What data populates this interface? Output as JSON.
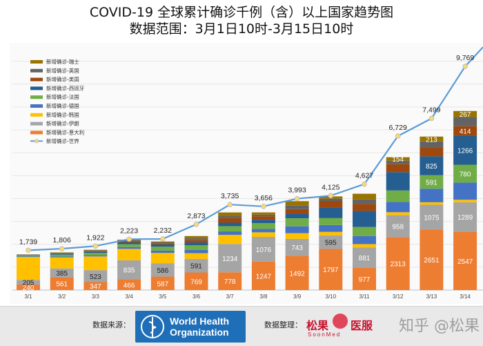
{
  "title": {
    "line1": "COVID-19 全球累计确诊千例（含）以上国家趋势图",
    "line2": "数据范围：3月1日10时-3月15日10时"
  },
  "footer": {
    "source_label": "数据来源：",
    "org_line1": "World Health",
    "org_line2": "Organization",
    "compiler_label": "数据整理：",
    "compiler_name_a": "松果",
    "compiler_name_b": "医服",
    "compiler_sub": "SoonMed",
    "watermark": "知乎 @松果"
  },
  "chart_data": {
    "type": "bar",
    "stacked": true,
    "categories": [
      "3/1",
      "3/2",
      "3/3",
      "3/4",
      "3/5",
      "3/6",
      "3/7",
      "3/8",
      "3/9",
      "3/10",
      "3/11",
      "3/12",
      "3/13",
      "3/14"
    ],
    "ylim": [
      0,
      10500
    ],
    "grid": true,
    "legend_position": "top-left",
    "series": [
      {
        "name": "新增确诊-意大利",
        "color": "#ed7d31",
        "values": [
          240,
          561,
          347,
          466,
          587,
          769,
          778,
          1247,
          1492,
          1797,
          977,
          2313,
          2651,
          2547
        ],
        "labels": [
          "240",
          "561",
          "347",
          "466",
          "587",
          "769",
          "778",
          "1247",
          "1492",
          "1797",
          "977",
          "2313",
          "2651",
          "2547"
        ]
      },
      {
        "name": "新增确诊-伊朗",
        "color": "#a5a5a5",
        "values": [
          205,
          385,
          523,
          835,
          586,
          591,
          1234,
          1076,
          743,
          595,
          881,
          958,
          1075,
          1289
        ],
        "labels": [
          "205",
          "385",
          "523",
          "835",
          "586",
          "591",
          "1234",
          "1076",
          "743",
          "595",
          "881",
          "958",
          "1075",
          "1289"
        ]
      },
      {
        "name": "新增确诊-韩国",
        "color": "#ffc000",
        "values": [
          1000,
          480,
          600,
          500,
          450,
          250,
          400,
          200,
          250,
          150,
          150,
          130,
          110,
          110
        ],
        "labels": [
          null,
          null,
          null,
          null,
          null,
          null,
          null,
          null,
          null,
          null,
          null,
          null,
          null,
          null
        ]
      },
      {
        "name": "新增确诊-德国",
        "color": "#4472c4",
        "values": [
          30,
          40,
          50,
          80,
          100,
          150,
          150,
          150,
          300,
          300,
          350,
          450,
          591,
          750
        ],
        "labels": [
          null,
          null,
          null,
          null,
          null,
          null,
          null,
          null,
          null,
          null,
          null,
          null,
          null,
          null
        ]
      },
      {
        "name": "新增确诊-法国",
        "color": "#70ad47",
        "values": [
          40,
          80,
          100,
          120,
          170,
          200,
          230,
          250,
          350,
          300,
          400,
          500,
          591,
          780
        ],
        "labels": [
          null,
          null,
          null,
          null,
          null,
          null,
          null,
          null,
          null,
          null,
          null,
          null,
          "591",
          "780"
        ]
      },
      {
        "name": "新增确诊-西班牙",
        "color": "#255e91",
        "values": [
          20,
          40,
          60,
          80,
          100,
          120,
          150,
          150,
          200,
          450,
          700,
          800,
          825,
          1266
        ],
        "labels": [
          null,
          null,
          null,
          null,
          null,
          null,
          null,
          null,
          null,
          null,
          null,
          null,
          "825",
          "1266"
        ]
      },
      {
        "name": "新增确诊-美国",
        "color": "#9e480e",
        "values": [
          10,
          20,
          30,
          50,
          50,
          100,
          200,
          150,
          200,
          300,
          300,
          350,
          400,
          414
        ],
        "labels": [
          null,
          null,
          null,
          null,
          null,
          null,
          null,
          null,
          null,
          null,
          null,
          null,
          null,
          "414"
        ]
      },
      {
        "name": "新增确诊-英国",
        "color": "#636363",
        "values": [
          10,
          20,
          30,
          40,
          40,
          80,
          100,
          70,
          150,
          100,
          200,
          150,
          250,
          400
        ],
        "labels": [
          null,
          null,
          null,
          null,
          null,
          null,
          null,
          null,
          null,
          null,
          null,
          null,
          null,
          null
        ]
      },
      {
        "name": "新增确诊-瑞士",
        "color": "#997300",
        "values": [
          5,
          20,
          20,
          30,
          40,
          100,
          150,
          100,
          200,
          100,
          250,
          154,
          213,
          267
        ],
        "labels": [
          null,
          null,
          null,
          null,
          null,
          null,
          null,
          null,
          null,
          null,
          null,
          "154",
          "213",
          "267"
        ]
      }
    ],
    "line_series": {
      "name": "新增确诊-世界",
      "color": "#5b9bd5",
      "values": [
        1739,
        1806,
        1922,
        2223,
        2232,
        2873,
        3735,
        3656,
        3993,
        4125,
        4627,
        6729,
        7499,
        9769
      ],
      "labels": [
        "1,739",
        "1,806",
        "1,922",
        "2,223",
        "2,232",
        "2,873",
        "3,735",
        "3,656",
        "3,993",
        "4,125",
        "4,627",
        "6,729",
        "7,499",
        "9,769"
      ]
    },
    "annotation_colors": {
      "light": "#ffffff",
      "dark": "#333333"
    }
  }
}
